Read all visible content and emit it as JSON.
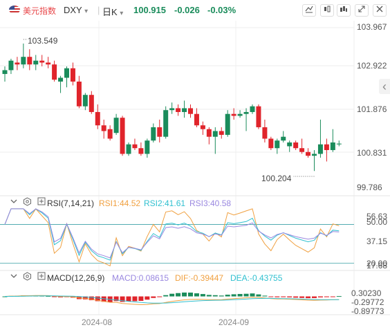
{
  "toolbar": {
    "name": "美元指数",
    "symbol": "DXY",
    "symbol_dropdown": "▾",
    "period": "日K",
    "period_dropdown": "▾",
    "price": "100.915",
    "change": "-0.026",
    "change_pct": "-0.03%",
    "colors": {
      "name": "#e8474a",
      "price": "#1a8c5b"
    },
    "icons": [
      "drawing-tool-icon",
      "compare-icon",
      "indicator-icon",
      "expand-icon",
      "close-icon"
    ]
  },
  "main_chart": {
    "price_labels": [
      "103.967",
      "102.922",
      "101.876",
      "100.831",
      "99.786"
    ],
    "high_annotation": "103.549",
    "low_annotation": "100.204",
    "collapse_arrow": "‹"
  },
  "rsi": {
    "title": "RSI(7,14,21)",
    "rsi1": "RSI1:44.52",
    "rsi2": "RSI2:41.61",
    "rsi3": "RSI3:40.58",
    "labels": [
      "56.63",
      "50.00",
      "37.15",
      "20.00",
      "17.68"
    ],
    "colors": {
      "rsi1": "#f0a040",
      "rsi2": "#30c0d0",
      "rsi3": "#9a88e0"
    }
  },
  "macd": {
    "title": "MACD(12,26,9)",
    "macd": "MACD:0.08615",
    "dif": "DIF:-0.39447",
    "dea": "DEA:-0.43755",
    "labels": [
      "0.30230",
      "-0.29772",
      "-0.89773"
    ],
    "colors": {
      "macd": "#9a88e0",
      "dif": "#f0a040",
      "dea": "#30c0d0"
    }
  },
  "x_axis": [
    "2024-08",
    "2024-09"
  ],
  "chart_data": {
    "type": "candlestick",
    "up_color": "#1a8c5b",
    "down_color": "#e0242b",
    "y_range": [
      99.786,
      103.967
    ],
    "x": [
      1,
      2,
      3,
      4,
      5,
      6,
      7,
      8,
      9,
      10,
      11,
      12,
      13,
      14,
      15,
      16,
      17,
      18,
      19,
      20,
      21,
      22,
      23,
      24,
      25,
      26,
      27,
      28,
      29,
      30,
      31,
      32,
      33,
      34,
      35,
      36,
      37,
      38,
      39,
      40,
      41,
      42,
      43,
      44,
      45,
      46,
      47,
      48,
      49,
      50,
      51,
      52,
      53,
      54,
      55
    ],
    "ohlc": [
      [
        102.75,
        102.95,
        102.55,
        102.85
      ],
      [
        102.85,
        103.15,
        102.75,
        103.1
      ],
      [
        103.05,
        103.2,
        102.85,
        103.0
      ],
      [
        103.0,
        103.55,
        102.9,
        103.2
      ],
      [
        103.2,
        103.4,
        102.85,
        103.0
      ],
      [
        103.0,
        103.25,
        102.85,
        103.1
      ],
      [
        103.1,
        103.25,
        102.95,
        103.05
      ],
      [
        103.05,
        103.2,
        102.9,
        103.0
      ],
      [
        103.0,
        103.1,
        102.55,
        102.6
      ],
      [
        102.55,
        102.7,
        102.25,
        102.65
      ],
      [
        102.65,
        102.95,
        102.4,
        102.9
      ],
      [
        102.9,
        103.05,
        102.45,
        102.55
      ],
      [
        102.55,
        102.7,
        101.85,
        101.9
      ],
      [
        101.9,
        102.25,
        101.8,
        102.2
      ],
      [
        102.2,
        102.3,
        101.7,
        101.75
      ],
      [
        101.75,
        101.95,
        101.3,
        101.4
      ],
      [
        101.4,
        101.55,
        101.05,
        101.25
      ],
      [
        101.3,
        101.4,
        101.0,
        101.05
      ],
      [
        101.2,
        101.7,
        101.15,
        101.6
      ],
      [
        101.6,
        101.65,
        100.6,
        100.65
      ],
      [
        100.65,
        100.95,
        100.6,
        100.9
      ],
      [
        100.9,
        101.05,
        100.75,
        100.8
      ],
      [
        100.8,
        100.95,
        100.6,
        100.65
      ],
      [
        100.65,
        101.05,
        100.55,
        101.0
      ],
      [
        101.0,
        101.45,
        100.95,
        101.35
      ],
      [
        101.35,
        101.55,
        100.95,
        101.1
      ],
      [
        101.1,
        101.9,
        101.05,
        101.8
      ],
      [
        101.8,
        102.0,
        101.7,
        101.85
      ],
      [
        101.85,
        101.95,
        101.65,
        101.75
      ],
      [
        101.75,
        102.05,
        101.6,
        101.85
      ],
      [
        101.85,
        101.95,
        101.6,
        101.7
      ],
      [
        101.7,
        101.85,
        101.35,
        101.4
      ],
      [
        101.4,
        101.5,
        101.15,
        101.3
      ],
      [
        101.3,
        101.35,
        100.9,
        101.1
      ],
      [
        101.1,
        101.35,
        100.65,
        101.25
      ],
      [
        101.25,
        101.35,
        101.05,
        101.15
      ],
      [
        101.15,
        101.8,
        101.1,
        101.7
      ],
      [
        101.7,
        101.85,
        101.55,
        101.65
      ],
      [
        101.65,
        101.8,
        101.6,
        101.7
      ],
      [
        101.7,
        101.85,
        101.25,
        101.75
      ],
      [
        101.75,
        101.95,
        101.7,
        101.9
      ],
      [
        101.9,
        101.95,
        101.3,
        101.35
      ],
      [
        101.35,
        101.55,
        100.95,
        101.05
      ],
      [
        101.05,
        101.1,
        100.75,
        100.8
      ],
      [
        100.8,
        101.05,
        100.65,
        101.0
      ],
      [
        101.0,
        101.25,
        100.95,
        101.1
      ],
      [
        100.85,
        101.0,
        100.7,
        100.95
      ],
      [
        100.95,
        101.0,
        100.75,
        100.8
      ],
      [
        100.8,
        101.05,
        100.65,
        100.7
      ],
      [
        100.7,
        100.8,
        100.55,
        100.6
      ],
      [
        100.6,
        100.75,
        100.2,
        100.65
      ],
      [
        100.65,
        101.55,
        100.55,
        100.9
      ],
      [
        100.9,
        101.05,
        100.45,
        100.75
      ],
      [
        100.75,
        101.3,
        100.7,
        100.95
      ],
      [
        100.9,
        101.0,
        100.85,
        100.92
      ]
    ]
  }
}
